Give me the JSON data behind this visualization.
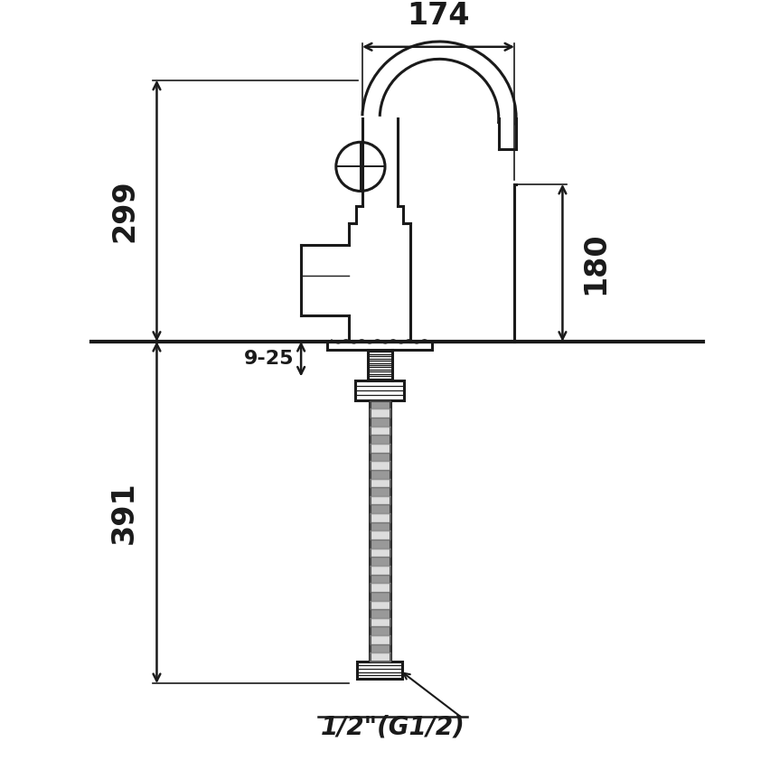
{
  "bg_color": "#ffffff",
  "line_color": "#1a1a1a",
  "fig_size": [
    8.52,
    8.52
  ],
  "dpi": 100,
  "dim_174_text": "174",
  "dim_299_text": "299",
  "dim_180_text": "180",
  "dim_925_text": "9-25",
  "dim_391_text": "391",
  "dim_label_text": "1/2\"(G1/2)",
  "font_size_dim": 24,
  "font_size_label": 20,
  "lw_body": 2.2,
  "lw_counter": 3.0,
  "lw_dim": 1.8,
  "lw_thin": 1.2
}
